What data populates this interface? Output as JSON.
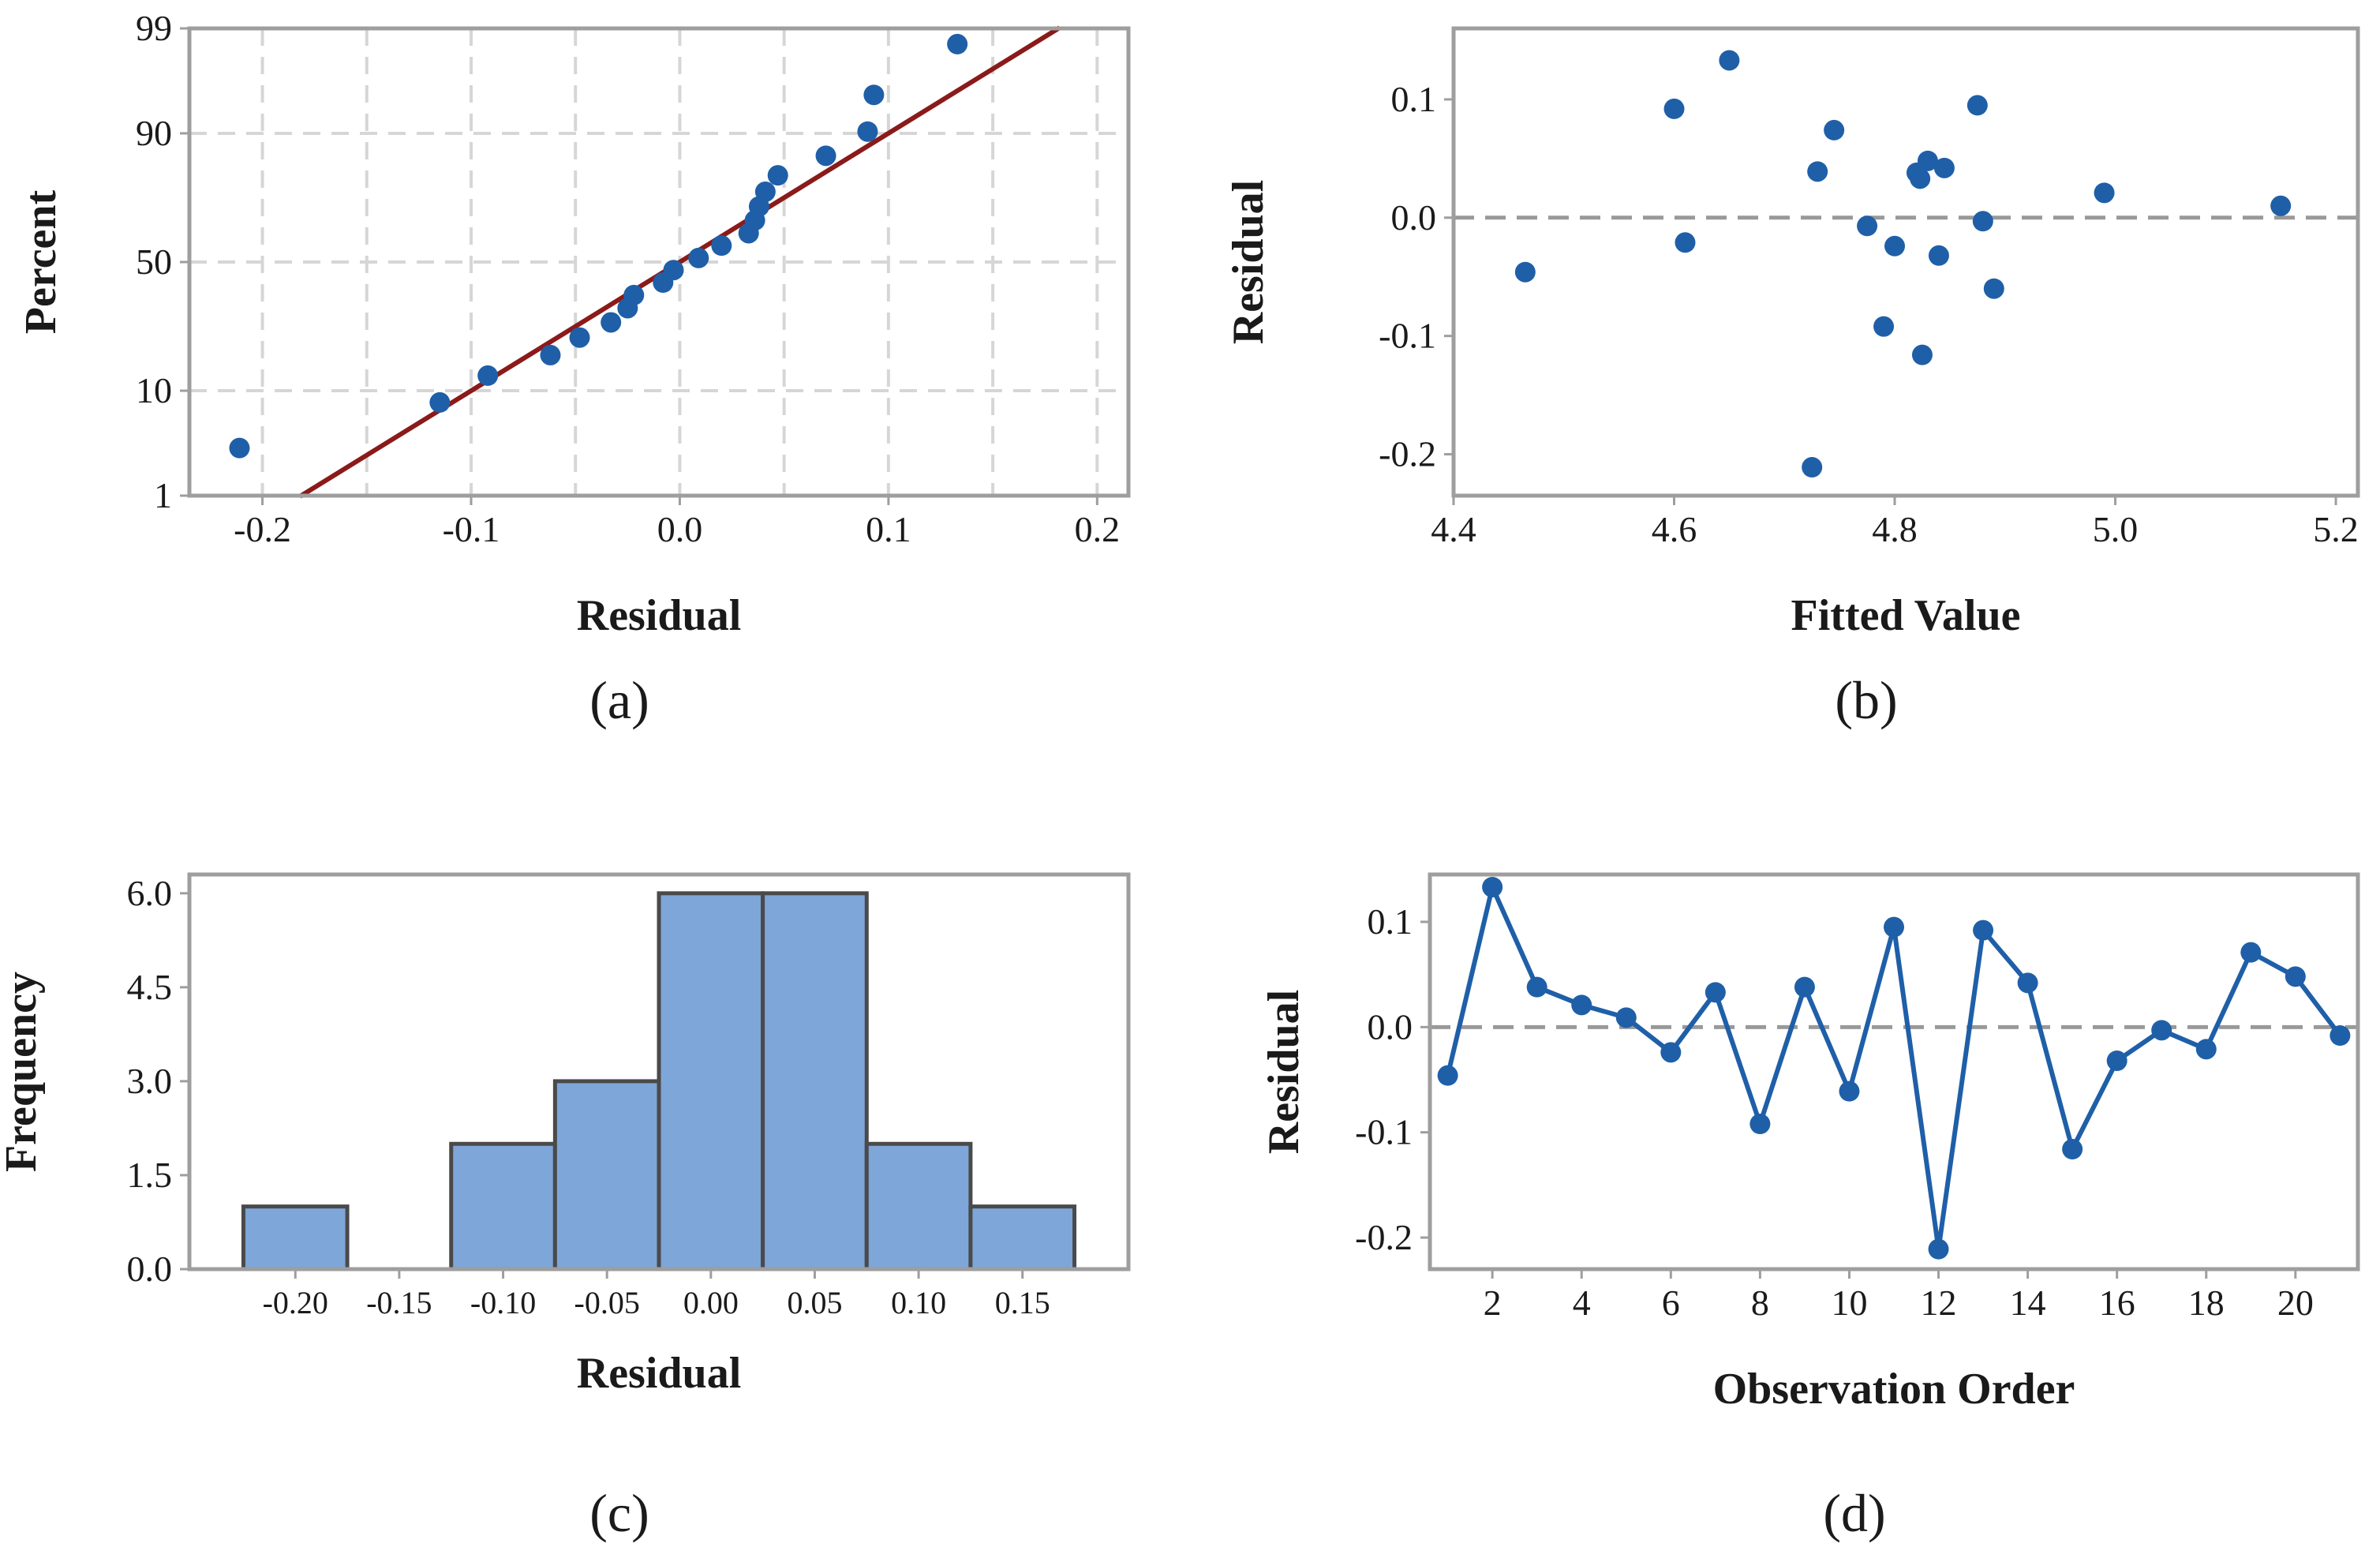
{
  "colors": {
    "point": "#1f5fa8",
    "fit_line": "#8b1a1a",
    "bar_fill": "#7ea6d8",
    "bar_edge": "#4a4a4a",
    "frame": "#9e9e9e",
    "grid": "#d6d6d6",
    "ref_line": "#999999"
  },
  "chart_data": [
    {
      "id": "a",
      "type": "scatter",
      "title": "",
      "panel_label": "(a)",
      "xlabel": "Residual",
      "ylabel": "Percent",
      "xlim": [
        -0.235,
        0.215
      ],
      "xticks": [
        -0.2,
        -0.1,
        0.0,
        0.1,
        0.2
      ],
      "xtick_labels": [
        "-0.2",
        "-0.1",
        "0.0",
        "0.1",
        "0.2"
      ],
      "yticks": [
        1,
        10,
        50,
        90,
        99
      ],
      "ytick_labels": [
        "1",
        "10",
        "50",
        "90",
        "99"
      ],
      "grid": true,
      "series": [
        {
          "name": "residuals",
          "points": [
            {
              "x": -0.211,
              "y": 3.2
            },
            {
              "x": -0.115,
              "y": 8.1
            },
            {
              "x": -0.092,
              "y": 12.9
            },
            {
              "x": -0.062,
              "y": 17.7
            },
            {
              "x": -0.048,
              "y": 22.6
            },
            {
              "x": -0.033,
              "y": 27.4
            },
            {
              "x": -0.025,
              "y": 32.3
            },
            {
              "x": -0.022,
              "y": 37.1
            },
            {
              "x": -0.008,
              "y": 41.9
            },
            {
              "x": -0.003,
              "y": 46.8
            },
            {
              "x": 0.009,
              "y": 51.6
            },
            {
              "x": 0.02,
              "y": 56.5
            },
            {
              "x": 0.033,
              "y": 61.3
            },
            {
              "x": 0.036,
              "y": 66.1
            },
            {
              "x": 0.038,
              "y": 71.0
            },
            {
              "x": 0.041,
              "y": 75.8
            },
            {
              "x": 0.047,
              "y": 80.6
            },
            {
              "x": 0.07,
              "y": 85.5
            },
            {
              "x": 0.09,
              "y": 90.3
            },
            {
              "x": 0.093,
              "y": 95.2
            },
            {
              "x": 0.133,
              "y": 98.5
            }
          ]
        },
        {
          "name": "normal fit",
          "type": "line",
          "mean": 0.0,
          "sd": 0.078,
          "x_range": [
            -0.182,
            0.182
          ]
        }
      ]
    },
    {
      "id": "b",
      "type": "scatter",
      "title": "",
      "panel_label": "(b)",
      "xlabel": "Fitted Value",
      "ylabel": "Residual",
      "xlim": [
        4.4,
        5.22
      ],
      "ylim": [
        -0.235,
        0.16
      ],
      "xticks": [
        4.4,
        4.6,
        4.8,
        5.0,
        5.2
      ],
      "xtick_labels": [
        "4.4",
        "4.6",
        "4.8",
        "5.0",
        "5.2"
      ],
      "yticks": [
        -0.2,
        -0.1,
        0.0,
        0.1
      ],
      "ytick_labels": [
        "-0.2",
        "-0.1",
        "0.0",
        "0.1"
      ],
      "reference_line": 0.0,
      "grid": false,
      "points": [
        {
          "x": 4.465,
          "y": -0.046
        },
        {
          "x": 4.6,
          "y": 0.092
        },
        {
          "x": 4.61,
          "y": -0.021
        },
        {
          "x": 4.65,
          "y": 0.133
        },
        {
          "x": 4.725,
          "y": -0.211
        },
        {
          "x": 4.73,
          "y": 0.039
        },
        {
          "x": 4.745,
          "y": 0.074
        },
        {
          "x": 4.775,
          "y": -0.007
        },
        {
          "x": 4.79,
          "y": -0.092
        },
        {
          "x": 4.8,
          "y": -0.024
        },
        {
          "x": 4.82,
          "y": 0.038
        },
        {
          "x": 4.823,
          "y": 0.033
        },
        {
          "x": 4.825,
          "y": -0.116
        },
        {
          "x": 4.83,
          "y": 0.048
        },
        {
          "x": 4.84,
          "y": -0.032
        },
        {
          "x": 4.845,
          "y": 0.042
        },
        {
          "x": 4.875,
          "y": 0.095
        },
        {
          "x": 4.88,
          "y": -0.003
        },
        {
          "x": 4.89,
          "y": -0.06
        },
        {
          "x": 4.99,
          "y": 0.021
        },
        {
          "x": 5.15,
          "y": 0.01
        }
      ]
    },
    {
      "id": "c",
      "type": "bar",
      "title": "",
      "panel_label": "(c)",
      "xlabel": "Residual",
      "ylabel": "Frequency",
      "bin_width": 0.05,
      "categories": [
        "-0.20",
        "-0.15",
        "-0.10",
        "-0.05",
        "0.00",
        "0.05",
        "0.10",
        "0.15"
      ],
      "values": [
        1,
        0,
        2,
        3,
        6,
        6,
        2,
        1
      ],
      "ylim": [
        0,
        6.3
      ],
      "yticks": [
        0.0,
        1.5,
        3.0,
        4.5,
        6.0
      ],
      "ytick_labels": [
        "0.0",
        "1.5",
        "3.0",
        "4.5",
        "6.0"
      ],
      "grid": false
    },
    {
      "id": "d",
      "type": "line",
      "title": "",
      "panel_label": "(d)",
      "xlabel": "Observation Order",
      "ylabel": "Residual",
      "xlim": [
        0.6,
        21.4
      ],
      "ylim": [
        -0.23,
        0.145
      ],
      "xticks": [
        2,
        4,
        6,
        8,
        10,
        12,
        14,
        16,
        18,
        20
      ],
      "xtick_labels": [
        "2",
        "4",
        "6",
        "8",
        "10",
        "12",
        "14",
        "16",
        "18",
        "20"
      ],
      "yticks": [
        -0.2,
        -0.1,
        0.0,
        0.1
      ],
      "ytick_labels": [
        "-0.2",
        "-0.1",
        "0.0",
        "0.1"
      ],
      "reference_line": 0.0,
      "grid": false,
      "x": [
        1,
        2,
        3,
        4,
        5,
        6,
        7,
        8,
        9,
        10,
        11,
        12,
        13,
        14,
        15,
        16,
        17,
        18,
        19,
        20,
        21
      ],
      "values": [
        -0.046,
        0.133,
        0.038,
        0.021,
        0.009,
        -0.024,
        0.033,
        -0.092,
        0.038,
        -0.061,
        0.095,
        -0.211,
        0.092,
        0.042,
        -0.116,
        -0.032,
        -0.003,
        -0.021,
        0.071,
        0.048,
        -0.008
      ]
    }
  ]
}
